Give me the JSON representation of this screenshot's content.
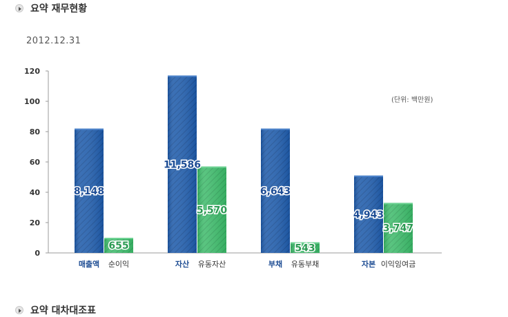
{
  "section1": {
    "title": "요약 재무현황"
  },
  "as_of": "2012.12.31",
  "section2": {
    "title": "요약 대차대조표"
  },
  "colors": {
    "blue": "#1e5aa8",
    "green": "#3cb066"
  },
  "chart_data": {
    "type": "bar",
    "unit_label": "(단위: 백만원)",
    "ylim": [
      0,
      120
    ],
    "yticks": [
      0,
      20,
      40,
      60,
      80,
      100,
      120
    ],
    "grid": false,
    "groups": [
      {
        "blue": {
          "label": "매출액",
          "value": 8148,
          "value_label": "8,148",
          "height": 82
        },
        "green": {
          "label": "순이익",
          "value": 655,
          "value_label": "655",
          "height": 10
        }
      },
      {
        "blue": {
          "label": "자산",
          "value": 11586,
          "value_label": "11,586",
          "height": 117
        },
        "green": {
          "label": "유동자산",
          "value": 5570,
          "value_label": "5,570",
          "height": 57
        }
      },
      {
        "blue": {
          "label": "부채",
          "value": 6643,
          "value_label": "6,643",
          "height": 82
        },
        "green": {
          "label": "유동부채",
          "value": 543,
          "value_label": "543",
          "height": 7
        }
      },
      {
        "blue": {
          "label": "자본",
          "value": 4943,
          "value_label": "4,943",
          "height": 51
        },
        "green": {
          "label": "이익잉여금",
          "value": 3747,
          "value_label": "3,747",
          "height": 33
        }
      }
    ]
  }
}
